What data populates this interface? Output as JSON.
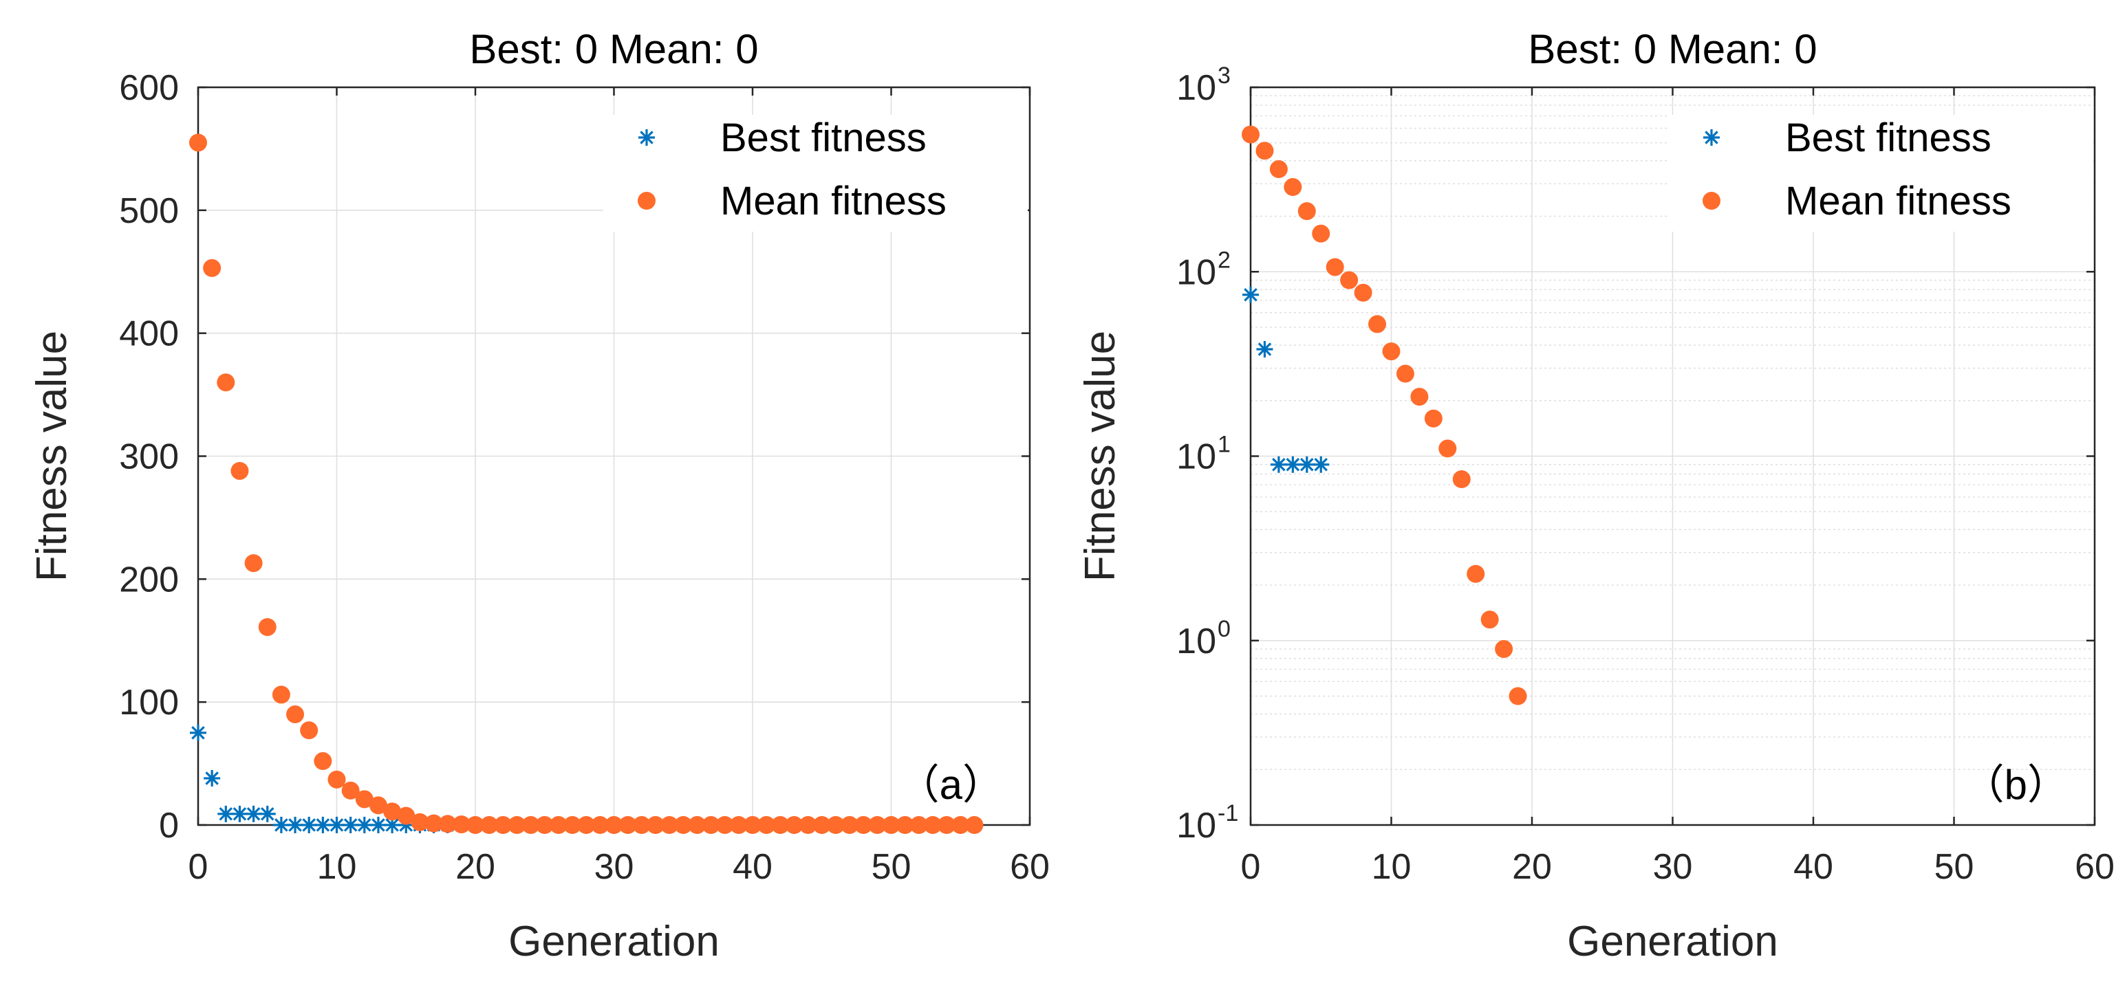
{
  "colors": {
    "best": "#0072bd",
    "mean": "#ff6b2b",
    "axis": "#262626"
  },
  "chart_data": [
    {
      "type": "scatter",
      "title": "Best: 0 Mean: 0",
      "xlabel": "Generation",
      "ylabel": "Fitness value",
      "xlim": [
        0,
        60
      ],
      "ylim": [
        0,
        600
      ],
      "yscale": "linear",
      "xticks": [
        0,
        10,
        20,
        30,
        40,
        50,
        60
      ],
      "xtick_labels": [
        "0",
        "10",
        "20",
        "30",
        "40",
        "50",
        "60"
      ],
      "yticks": [
        0,
        100,
        200,
        300,
        400,
        500,
        600
      ],
      "ytick_labels": [
        "0",
        "100",
        "200",
        "300",
        "400",
        "500",
        "600"
      ],
      "grid": true,
      "legend_position": "top-right",
      "panel_label": "（a）",
      "series": [
        {
          "name": "Best fitness",
          "marker": "asterisk",
          "x": [
            0,
            1,
            2,
            3,
            4,
            5,
            6,
            7,
            8,
            9,
            10,
            11,
            12,
            13,
            14,
            15,
            16,
            17,
            18,
            19,
            20,
            21,
            22,
            23,
            24,
            25,
            26,
            27,
            28,
            29,
            30,
            31,
            32,
            33,
            34,
            35,
            36,
            37,
            38,
            39,
            40,
            41,
            42,
            43,
            44,
            45,
            46,
            47,
            48,
            49,
            50,
            51,
            52,
            53,
            54,
            55,
            56
          ],
          "y": [
            75,
            38,
            9,
            9,
            9,
            9,
            0,
            0,
            0,
            0,
            0,
            0,
            0,
            0,
            0,
            0,
            0,
            0,
            0,
            0,
            0,
            0,
            0,
            0,
            0,
            0,
            0,
            0,
            0,
            0,
            0,
            0,
            0,
            0,
            0,
            0,
            0,
            0,
            0,
            0,
            0,
            0,
            0,
            0,
            0,
            0,
            0,
            0,
            0,
            0,
            0,
            0,
            0,
            0,
            0,
            0,
            0
          ]
        },
        {
          "name": "Mean fitness",
          "marker": "filled-circle",
          "x": [
            0,
            1,
            2,
            3,
            4,
            5,
            6,
            7,
            8,
            9,
            10,
            11,
            12,
            13,
            14,
            15,
            16,
            17,
            18,
            19,
            20,
            21,
            22,
            23,
            24,
            25,
            26,
            27,
            28,
            29,
            30,
            31,
            32,
            33,
            34,
            35,
            36,
            37,
            38,
            39,
            40,
            41,
            42,
            43,
            44,
            45,
            46,
            47,
            48,
            49,
            50,
            51,
            52,
            53,
            54,
            55,
            56
          ],
          "y": [
            555,
            453,
            360,
            288,
            213,
            161,
            106,
            90,
            77,
            52,
            37,
            28,
            21,
            16,
            11,
            7.5,
            2.3,
            1.3,
            0.9,
            0.5,
            0,
            0,
            0,
            0,
            0,
            0,
            0,
            0,
            0,
            0,
            0,
            0,
            0,
            0,
            0,
            0,
            0,
            0,
            0,
            0,
            0,
            0,
            0,
            0,
            0,
            0,
            0,
            0,
            0,
            0,
            0,
            0,
            0,
            0,
            0,
            0,
            0
          ]
        }
      ]
    },
    {
      "type": "scatter",
      "title": "Best: 0 Mean: 0",
      "xlabel": "Generation",
      "ylabel": "Fitness value",
      "xlim": [
        0,
        60
      ],
      "ylim": [
        0.1,
        1000
      ],
      "yscale": "log",
      "xticks": [
        0,
        10,
        20,
        30,
        40,
        50,
        60
      ],
      "xtick_labels": [
        "0",
        "10",
        "20",
        "30",
        "40",
        "50",
        "60"
      ],
      "yticks": [
        0.1,
        1,
        10,
        100,
        1000
      ],
      "ytick_labels": [
        {
          "base": "10",
          "exp": "-1"
        },
        {
          "base": "10",
          "exp": "0"
        },
        {
          "base": "10",
          "exp": "1"
        },
        {
          "base": "10",
          "exp": "2"
        },
        {
          "base": "10",
          "exp": "3"
        }
      ],
      "grid": true,
      "legend_position": "top-right",
      "panel_label": "（b）",
      "series": [
        {
          "name": "Best fitness",
          "marker": "asterisk",
          "x": [
            0,
            1,
            2,
            3,
            4,
            5
          ],
          "y": [
            75,
            38,
            9,
            9,
            9,
            9
          ]
        },
        {
          "name": "Mean fitness",
          "marker": "filled-circle",
          "x": [
            0,
            1,
            2,
            3,
            4,
            5,
            6,
            7,
            8,
            9,
            10,
            11,
            12,
            13,
            14,
            15,
            16,
            17,
            18,
            19
          ],
          "y": [
            555,
            453,
            360,
            288,
            213,
            161,
            106,
            90,
            77,
            52,
            37,
            28,
            21,
            16,
            11,
            7.5,
            2.3,
            1.3,
            0.9,
            0.5
          ]
        }
      ]
    }
  ]
}
